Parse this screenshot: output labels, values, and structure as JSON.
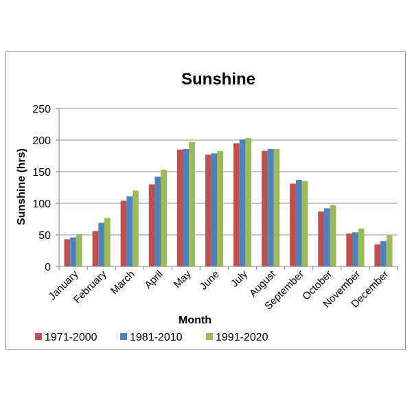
{
  "chart_data": {
    "type": "bar",
    "title": "Sunshine",
    "xlabel": "Month",
    "ylabel": "Sunshine (hrs)",
    "ylim": [
      0,
      250
    ],
    "yticks": [
      0,
      50,
      100,
      150,
      200,
      250
    ],
    "grid": true,
    "legend_position": "bottom",
    "categories": [
      "January",
      "February",
      "March",
      "April",
      "May",
      "June",
      "July",
      "August",
      "September",
      "October",
      "November",
      "December"
    ],
    "series": [
      {
        "name": "1971-2000",
        "color": "#c0504d",
        "values": [
          43,
          56,
          104,
          130,
          185,
          177,
          195,
          183,
          131,
          87,
          52,
          35
        ]
      },
      {
        "name": "1981-2010",
        "color": "#4f81bd",
        "values": [
          46,
          69,
          111,
          142,
          186,
          179,
          201,
          186,
          137,
          92,
          54,
          40
        ]
      },
      {
        "name": "1991-2020",
        "color": "#9bbb59",
        "values": [
          51,
          77,
          120,
          153,
          197,
          183,
          203,
          186,
          135,
          97,
          60,
          49
        ]
      }
    ]
  }
}
